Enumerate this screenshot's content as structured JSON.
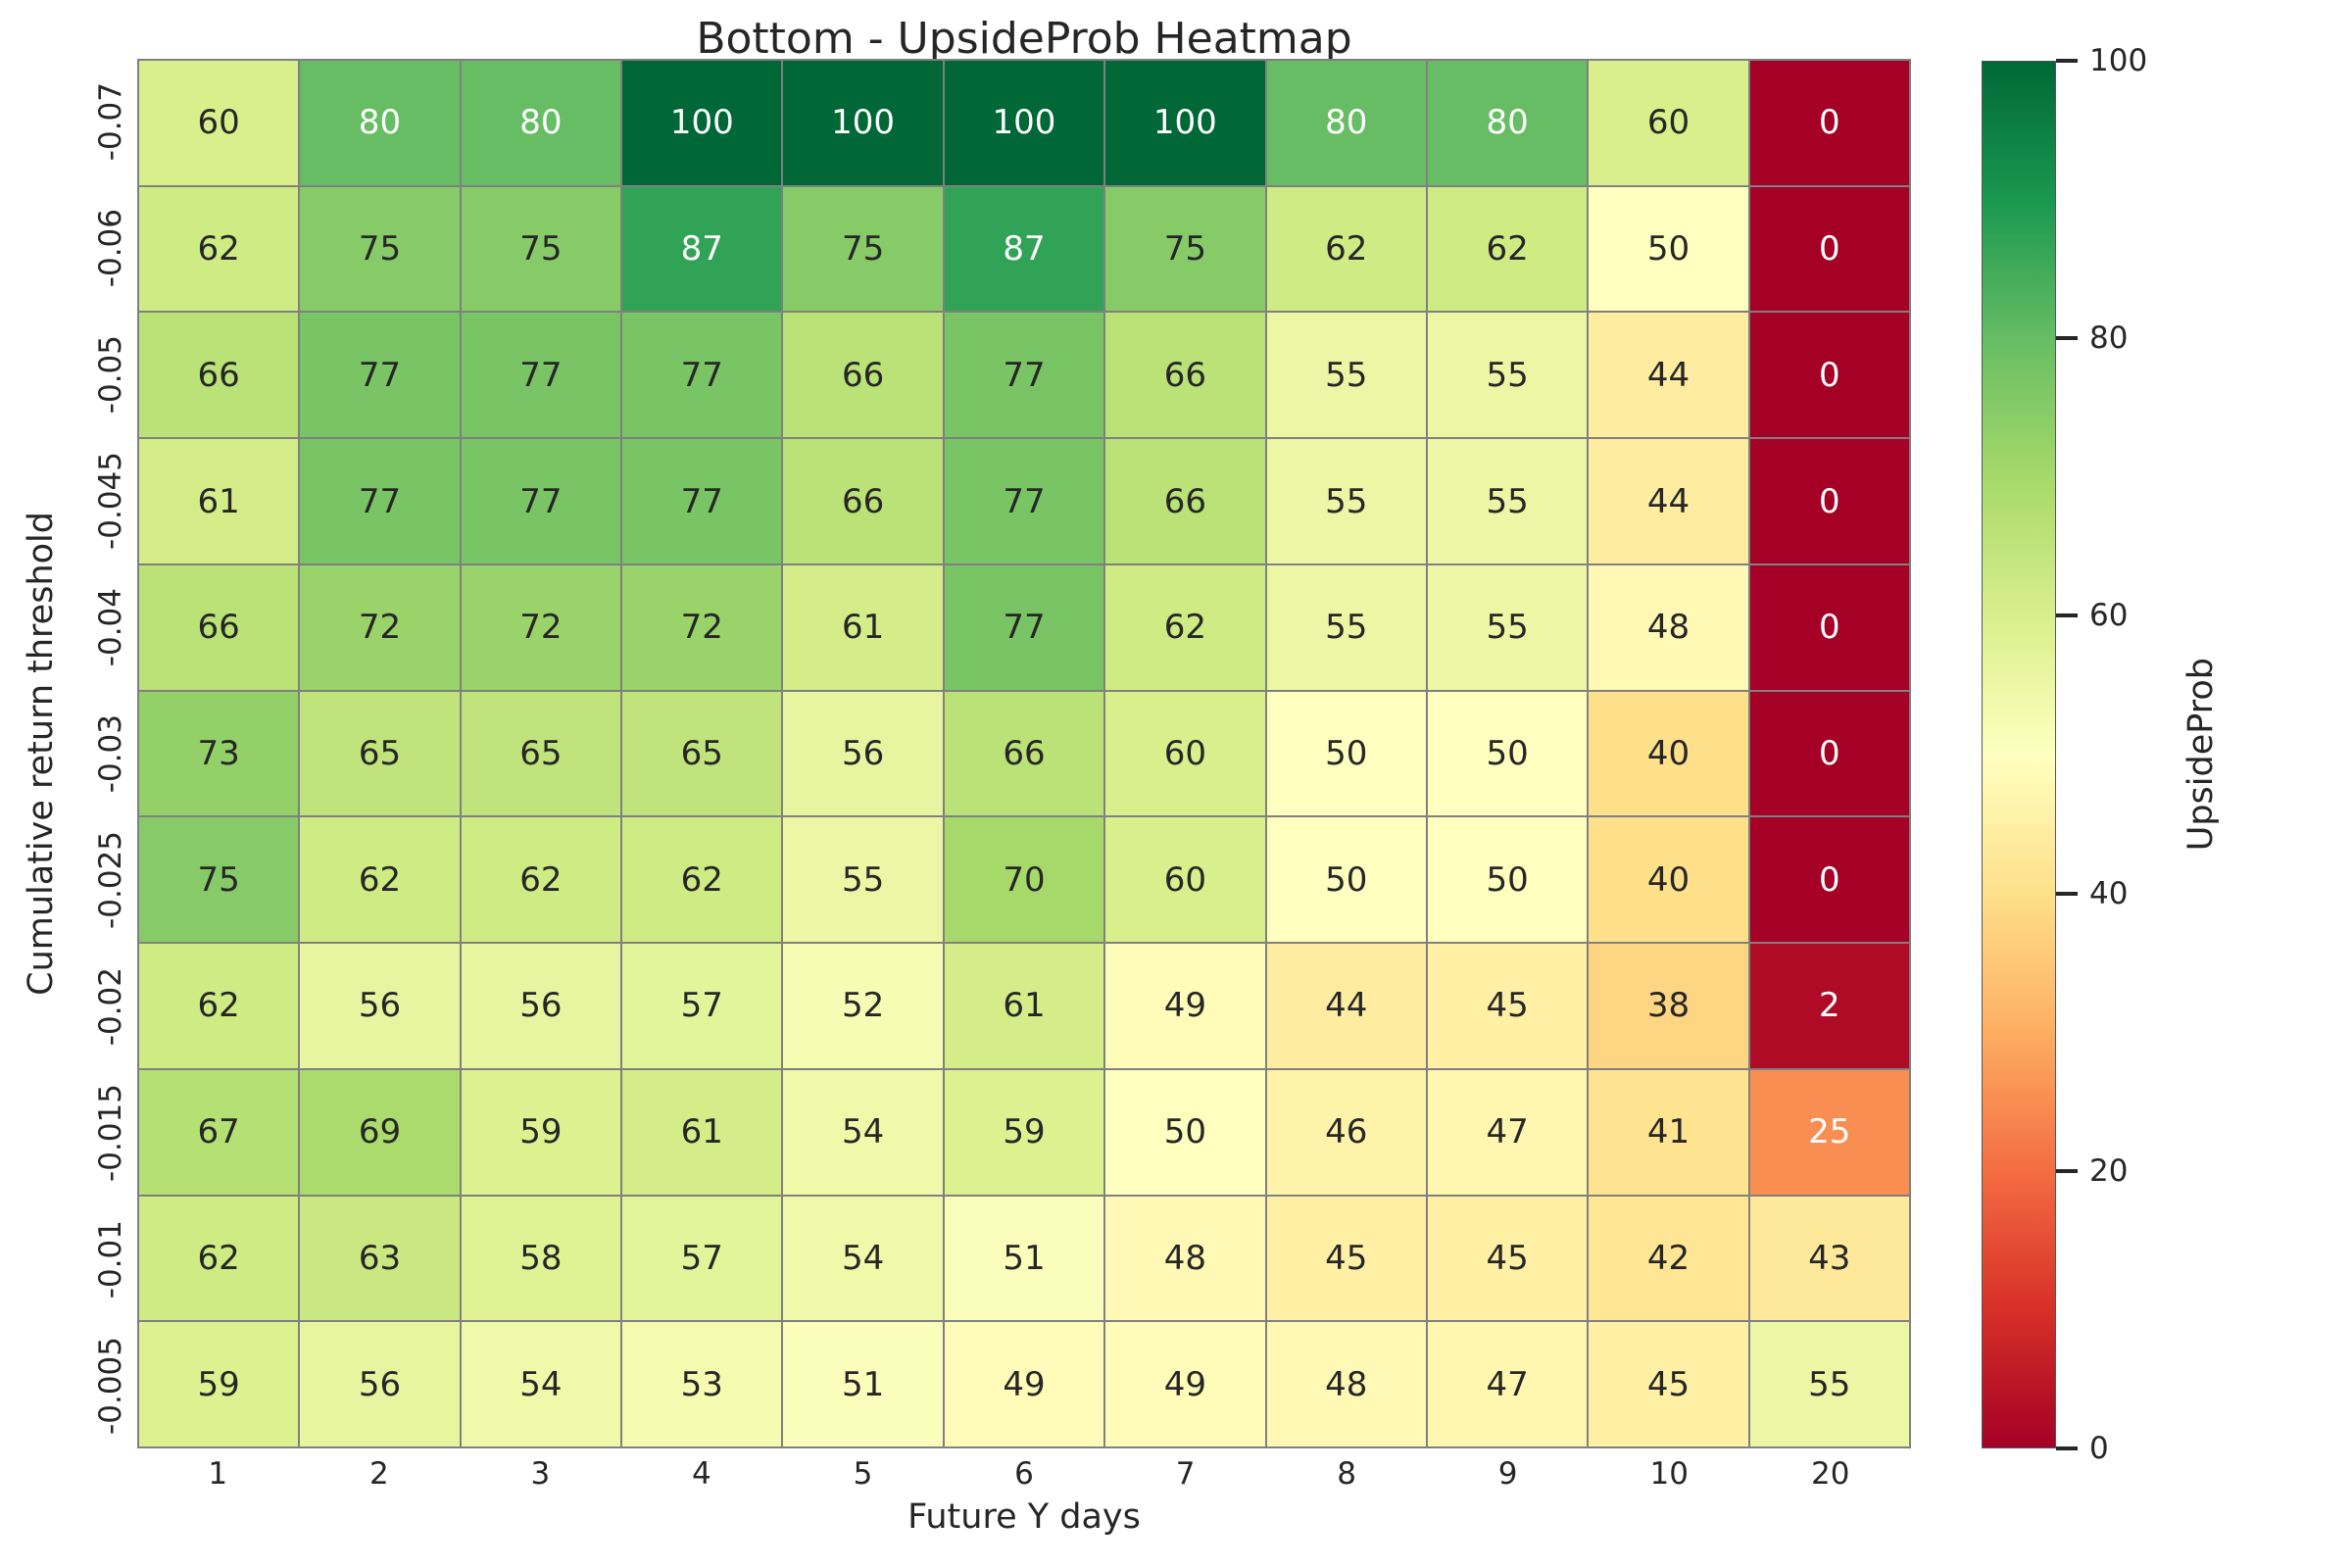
{
  "title": "Bottom - UpsideProb Heatmap",
  "chart_data": {
    "type": "heatmap",
    "title": "Bottom - UpsideProb Heatmap",
    "xlabel": "Future Y days",
    "ylabel": "Cumulative return threshold",
    "x_categories": [
      "1",
      "2",
      "3",
      "4",
      "5",
      "6",
      "7",
      "8",
      "9",
      "10",
      "20"
    ],
    "y_categories": [
      "-0.07",
      "-0.06",
      "-0.05",
      "-0.045",
      "-0.04",
      "-0.03",
      "-0.025",
      "-0.02",
      "-0.015",
      "-0.01",
      "-0.005"
    ],
    "values": [
      [
        60,
        80,
        80,
        100,
        100,
        100,
        100,
        80,
        80,
        60,
        0
      ],
      [
        62,
        75,
        75,
        87,
        75,
        87,
        75,
        62,
        62,
        50,
        0
      ],
      [
        66,
        77,
        77,
        77,
        66,
        77,
        66,
        55,
        55,
        44,
        0
      ],
      [
        61,
        77,
        77,
        77,
        66,
        77,
        66,
        55,
        55,
        44,
        0
      ],
      [
        66,
        72,
        72,
        72,
        61,
        77,
        62,
        55,
        55,
        48,
        0
      ],
      [
        73,
        65,
        65,
        65,
        56,
        66,
        60,
        50,
        50,
        40,
        0
      ],
      [
        75,
        62,
        62,
        62,
        55,
        70,
        60,
        50,
        50,
        40,
        0
      ],
      [
        62,
        56,
        56,
        57,
        52,
        61,
        49,
        44,
        45,
        38,
        2
      ],
      [
        67,
        69,
        59,
        61,
        54,
        59,
        50,
        46,
        47,
        41,
        25
      ],
      [
        62,
        63,
        58,
        57,
        54,
        51,
        48,
        45,
        45,
        42,
        43
      ],
      [
        59,
        56,
        54,
        53,
        51,
        49,
        49,
        48,
        47,
        45,
        55
      ]
    ],
    "value_range": [
      0,
      100
    ],
    "grid_on": false,
    "line_color": "#808080",
    "colormap": "RdYlGn",
    "colormap_anchors": [
      "#a50026",
      "#d73027",
      "#f46d43",
      "#fdae61",
      "#fee08b",
      "#ffffbf",
      "#d9ef8b",
      "#a6d96a",
      "#66bd63",
      "#1a9850",
      "#006837"
    ],
    "annotation_text_dark": "#262626",
    "annotation_text_light": "#ffffff",
    "colorbar": {
      "label": "UpsideProb",
      "ticks": [
        0,
        20,
        40,
        60,
        80,
        100
      ],
      "position": "right"
    }
  }
}
